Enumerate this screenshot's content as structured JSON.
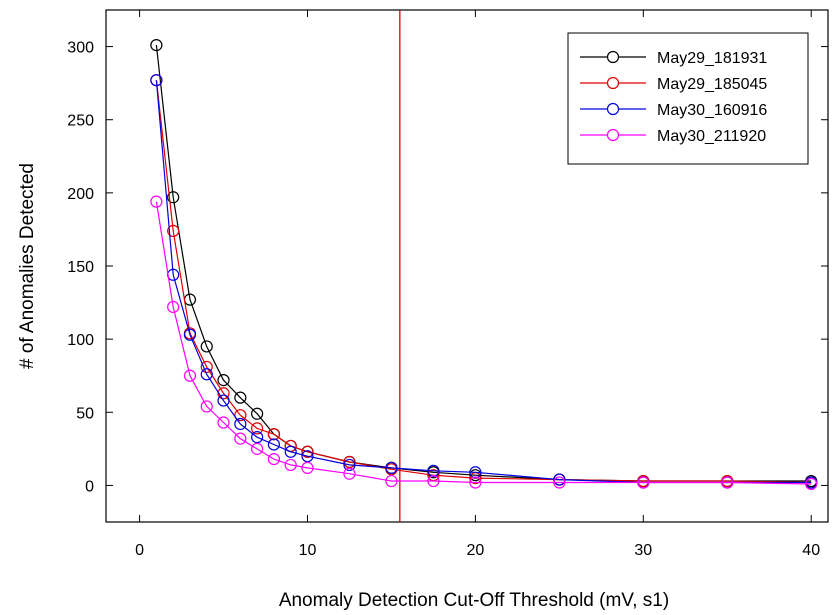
{
  "chart_data": {
    "type": "line",
    "xlabel": "Anomaly Detection Cut-Off Threshold (mV, s1)",
    "ylabel": "# of Anomalies Detected",
    "xlim": [
      -2,
      41
    ],
    "ylim": [
      -25,
      325
    ],
    "xticks": [
      0,
      10,
      20,
      30,
      40
    ],
    "yticks": [
      0,
      50,
      100,
      150,
      200,
      250,
      300
    ],
    "grid": false,
    "legend_position": "top-right",
    "vline": {
      "x": 15.5,
      "color": "#e00000"
    },
    "series": [
      {
        "name": "May29_181931",
        "color": "#000000",
        "x": [
          1,
          2,
          3,
          4,
          5,
          6,
          7,
          8,
          9,
          10,
          12.5,
          15,
          17.5,
          20,
          25,
          30,
          35,
          40
        ],
        "y": [
          301,
          197,
          127,
          95,
          72,
          60,
          49,
          35,
          27,
          23,
          16,
          12,
          9,
          7,
          4,
          3,
          3,
          3
        ]
      },
      {
        "name": "May29_185045",
        "color": "#e00000",
        "x": [
          1,
          2,
          3,
          4,
          5,
          6,
          7,
          8,
          9,
          10,
          12.5,
          15,
          17.5,
          20,
          25,
          30,
          35,
          40
        ],
        "y": [
          277,
          174,
          104,
          81,
          63,
          48,
          39,
          35,
          27,
          23,
          16,
          11,
          7,
          5,
          4,
          3,
          3,
          2
        ]
      },
      {
        "name": "May30_160916",
        "color": "#0000dd",
        "x": [
          1,
          2,
          3,
          4,
          5,
          6,
          7,
          8,
          9,
          10,
          12.5,
          15,
          17.5,
          20,
          25,
          30,
          35,
          40
        ],
        "y": [
          277,
          144,
          103,
          76,
          58,
          42,
          33,
          28,
          23,
          20,
          14,
          12,
          10,
          9,
          4,
          2,
          2,
          2
        ]
      },
      {
        "name": "May30_211920",
        "color": "#ff00ff",
        "x": [
          1,
          2,
          3,
          4,
          5,
          6,
          7,
          8,
          9,
          10,
          12.5,
          15,
          17.5,
          20,
          25,
          30,
          35,
          40
        ],
        "y": [
          194,
          122,
          75,
          54,
          43,
          32,
          25,
          18,
          14,
          12,
          8,
          3,
          3,
          2,
          2,
          2,
          2,
          1
        ]
      }
    ]
  }
}
